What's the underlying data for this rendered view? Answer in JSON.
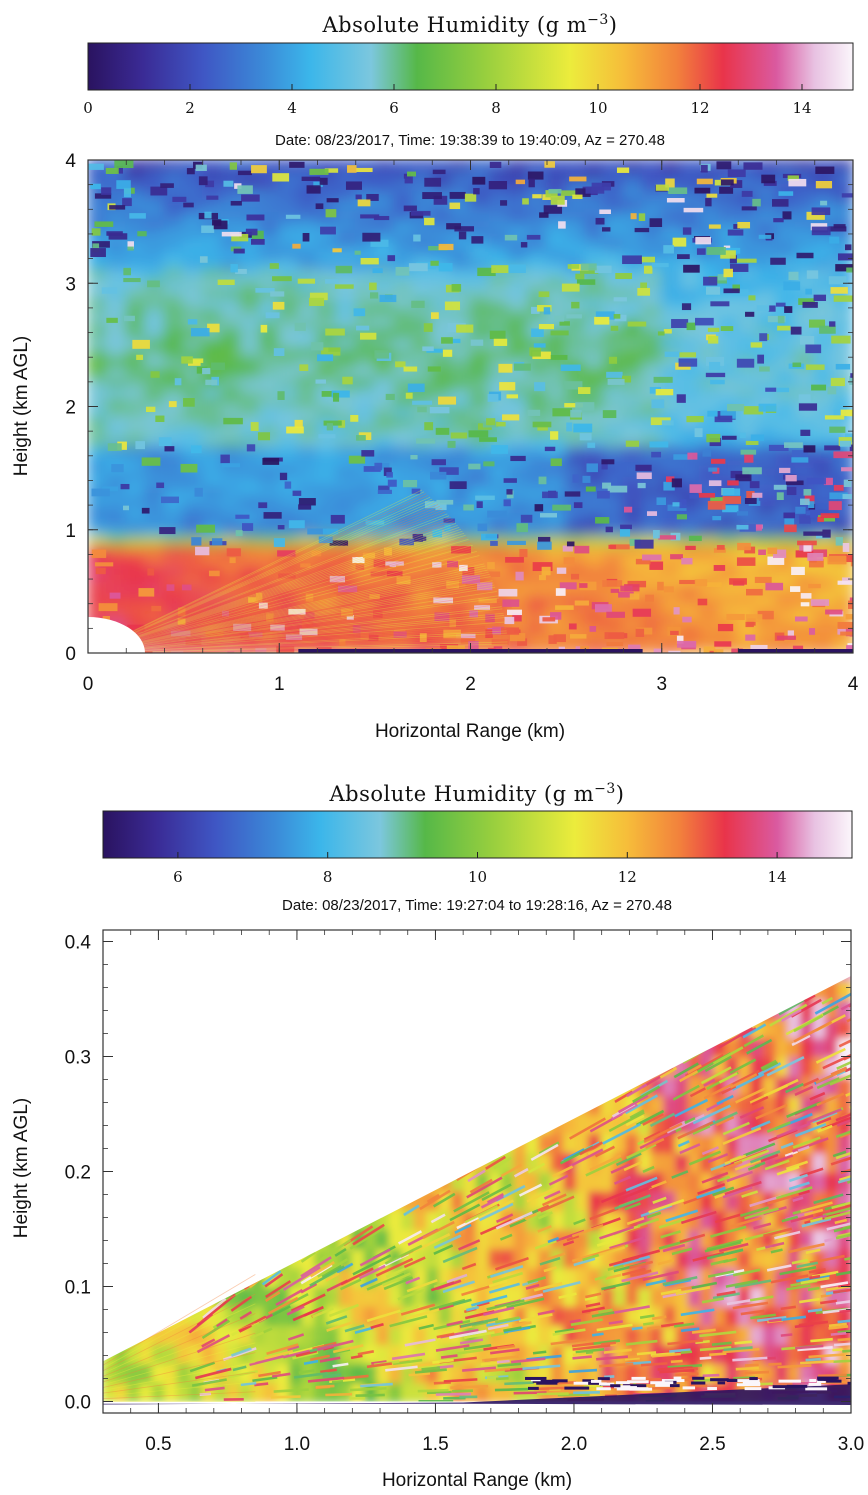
{
  "chart_data": [
    {
      "type": "heatmap",
      "colorbar": {
        "title": "Absolute Humidity (g m",
        "title_sup": "−3",
        "title_close": ")",
        "range": [
          0,
          15
        ],
        "ticks": [
          0,
          2,
          4,
          6,
          8,
          10,
          12,
          14
        ],
        "tick_labels": [
          "0",
          "2",
          "4",
          "6",
          "8",
          "10",
          "12",
          "14"
        ]
      },
      "subtitle": "Date: 08/23/2017, Time: 19:38:39 to 19:40:09, Az = 270.48",
      "xlabel": "Horizontal Range (km)",
      "ylabel": "Height (km AGL)",
      "xlim": [
        0,
        4
      ],
      "ylim": [
        0,
        4
      ],
      "xticks": [
        0,
        1,
        2,
        3,
        4
      ],
      "xtick_labels": [
        "0",
        "1",
        "2",
        "3",
        "4"
      ],
      "yticks": [
        0,
        1,
        2,
        3,
        4
      ],
      "ytick_labels": [
        "0",
        "1",
        "2",
        "3",
        "4"
      ],
      "value_layers": [
        {
          "height_range_km": [
            0,
            0.9
          ],
          "approx_humidity": 11.5
        },
        {
          "height_range_km": [
            0.9,
            1.7
          ],
          "approx_humidity": 3
        },
        {
          "height_range_km": [
            1.7,
            3.2
          ],
          "approx_humidity": 6
        },
        {
          "height_range_km": [
            3.2,
            4
          ],
          "approx_humidity": 2
        }
      ]
    },
    {
      "type": "heatmap",
      "colorbar": {
        "title": "Absolute Humidity (g m",
        "title_sup": "−3",
        "title_close": ")",
        "range": [
          5,
          15
        ],
        "ticks": [
          6,
          8,
          10,
          12,
          14
        ],
        "tick_labels": [
          "6",
          "8",
          "10",
          "12",
          "14"
        ]
      },
      "subtitle": "Date: 08/23/2017, Time: 19:27:04 to 19:28:16, Az = 270.48",
      "xlabel": "Horizontal Range (km)",
      "ylabel": "Height (km AGL)",
      "xlim": [
        0.3,
        3.0
      ],
      "ylim": [
        -0.01,
        0.41
      ],
      "xticks": [
        0.5,
        1.0,
        1.5,
        2.0,
        2.5,
        3.0
      ],
      "xtick_labels": [
        "0.5",
        "1.0",
        "1.5",
        "2.0",
        "2.5",
        "3.0"
      ],
      "yticks": [
        0.0,
        0.1,
        0.2,
        0.3,
        0.4
      ],
      "ytick_labels": [
        "0.0",
        "0.1",
        "0.2",
        "0.3",
        "0.4"
      ],
      "scan_wedge_top_km": {
        "at_range_0_3": 0.035,
        "at_range_3_0": 0.37
      },
      "approx_humidity_by_range": [
        {
          "range_km": 0.5,
          "value": 10.8
        },
        {
          "range_km": 1.0,
          "value": 10.2
        },
        {
          "range_km": 1.5,
          "value": 10.8
        },
        {
          "range_km": 2.0,
          "value": 11.5
        },
        {
          "range_km": 2.5,
          "value": 12.5
        },
        {
          "range_km": 3.0,
          "value": 13
        }
      ]
    }
  ],
  "colors": {
    "colormap": [
      "#2a1360",
      "#3d2f9a",
      "#3f56c4",
      "#3b8ad8",
      "#3bb6ea",
      "#7cc7de",
      "#56b848",
      "#98cf3e",
      "#ecec3c",
      "#f6bd3a",
      "#f2813c",
      "#e9344a",
      "#da5aa0",
      "#e8c2e2",
      "#fbf6fb"
    ]
  }
}
